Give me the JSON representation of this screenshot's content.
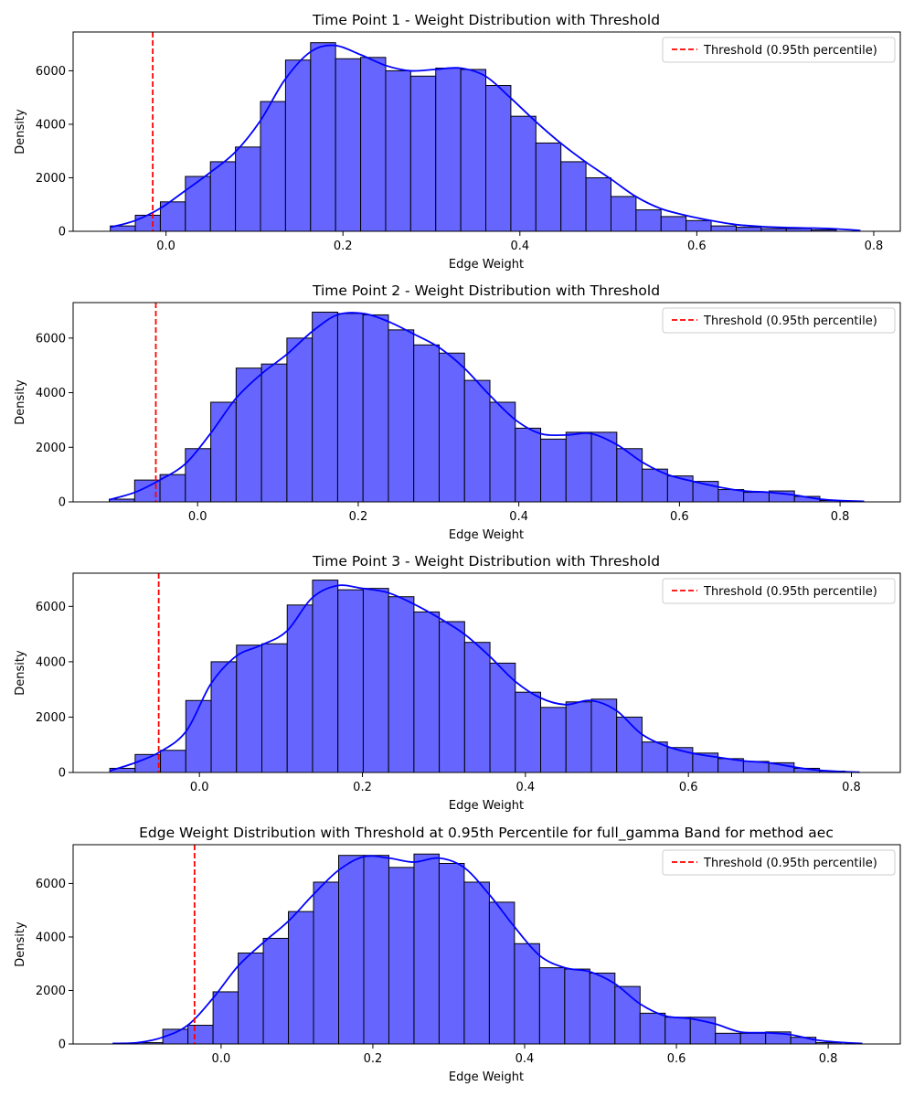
{
  "chart_data": [
    {
      "type": "bar",
      "title": "Time Point 1 - Weight Distribution with Threshold",
      "xlabel": "Edge Weight",
      "ylabel": "Density",
      "xlim": [
        -0.105,
        0.83
      ],
      "ylim": [
        0,
        7450
      ],
      "xticks": [
        0.0,
        0.2,
        0.4,
        0.6,
        0.8
      ],
      "xtick_labels": [
        "0.0",
        "0.2",
        "0.4",
        "0.6",
        "0.8"
      ],
      "yticks": [
        0,
        2000,
        4000,
        6000
      ],
      "ytick_labels": [
        "0",
        "2000",
        "4000",
        "6000"
      ],
      "bin_start": -0.063,
      "bin_width": 0.0283,
      "values": [
        200,
        600,
        1100,
        2050,
        2600,
        3150,
        4850,
        6400,
        7050,
        6450,
        6500,
        6000,
        5800,
        6100,
        6050,
        5450,
        4300,
        3300,
        2600,
        2000,
        1300,
        800,
        550,
        400,
        200,
        150,
        100,
        100,
        50
      ],
      "kde": [
        {
          "x": -0.063,
          "y": 150
        },
        {
          "x": -0.035,
          "y": 400
        },
        {
          "x": -0.007,
          "y": 850
        },
        {
          "x": 0.021,
          "y": 1500
        },
        {
          "x": 0.05,
          "y": 2200
        },
        {
          "x": 0.078,
          "y": 2950
        },
        {
          "x": 0.106,
          "y": 4100
        },
        {
          "x": 0.134,
          "y": 5650
        },
        {
          "x": 0.163,
          "y": 6700
        },
        {
          "x": 0.19,
          "y": 6950
        },
        {
          "x": 0.22,
          "y": 6600
        },
        {
          "x": 0.248,
          "y": 6200
        },
        {
          "x": 0.276,
          "y": 6000
        },
        {
          "x": 0.304,
          "y": 6050
        },
        {
          "x": 0.333,
          "y": 6100
        },
        {
          "x": 0.361,
          "y": 5800
        },
        {
          "x": 0.389,
          "y": 5000
        },
        {
          "x": 0.418,
          "y": 4100
        },
        {
          "x": 0.446,
          "y": 3300
        },
        {
          "x": 0.474,
          "y": 2600
        },
        {
          "x": 0.503,
          "y": 1950
        },
        {
          "x": 0.531,
          "y": 1300
        },
        {
          "x": 0.559,
          "y": 850
        },
        {
          "x": 0.587,
          "y": 600
        },
        {
          "x": 0.616,
          "y": 400
        },
        {
          "x": 0.644,
          "y": 250
        },
        {
          "x": 0.672,
          "y": 180
        },
        {
          "x": 0.7,
          "y": 140
        },
        {
          "x": 0.729,
          "y": 120
        },
        {
          "x": 0.757,
          "y": 90
        },
        {
          "x": 0.785,
          "y": 30
        }
      ],
      "threshold": -0.015,
      "legend": {
        "label": "Threshold (0.95th percentile)",
        "position": "top-right"
      },
      "colors": {
        "bar_fill": "#6666ff",
        "bar_edge": "#000000",
        "kde": "#0000ff",
        "threshold": "#ff0000"
      },
      "grid": false
    },
    {
      "type": "bar",
      "title": "Time Point 2 - Weight Distribution with Threshold",
      "xlabel": "Edge Weight",
      "ylabel": "Density",
      "xlim": [
        -0.155,
        0.875
      ],
      "ylim": [
        0,
        7300
      ],
      "xticks": [
        0.0,
        0.2,
        0.4,
        0.6,
        0.8
      ],
      "xtick_labels": [
        "0.0",
        "0.2",
        "0.4",
        "0.6",
        "0.8"
      ],
      "yticks": [
        0,
        2000,
        4000,
        6000
      ],
      "ytick_labels": [
        "0",
        "2000",
        "4000",
        "6000"
      ],
      "bin_start": -0.11,
      "bin_width": 0.0316,
      "values": [
        100,
        800,
        1000,
        1950,
        3650,
        4900,
        5050,
        6000,
        6950,
        6900,
        6850,
        6300,
        5750,
        5450,
        4450,
        3650,
        2700,
        2300,
        2550,
        2550,
        1950,
        1200,
        950,
        750,
        450,
        350,
        400,
        200,
        50
      ],
      "kde": [
        {
          "x": -0.11,
          "y": 80
        },
        {
          "x": -0.078,
          "y": 350
        },
        {
          "x": -0.047,
          "y": 800
        },
        {
          "x": -0.015,
          "y": 1400
        },
        {
          "x": 0.016,
          "y": 2500
        },
        {
          "x": 0.048,
          "y": 3800
        },
        {
          "x": 0.08,
          "y": 4700
        },
        {
          "x": 0.111,
          "y": 5400
        },
        {
          "x": 0.143,
          "y": 6250
        },
        {
          "x": 0.174,
          "y": 6850
        },
        {
          "x": 0.206,
          "y": 6900
        },
        {
          "x": 0.238,
          "y": 6600
        },
        {
          "x": 0.269,
          "y": 6150
        },
        {
          "x": 0.301,
          "y": 5650
        },
        {
          "x": 0.332,
          "y": 4900
        },
        {
          "x": 0.364,
          "y": 3900
        },
        {
          "x": 0.396,
          "y": 3000
        },
        {
          "x": 0.427,
          "y": 2500
        },
        {
          "x": 0.459,
          "y": 2450
        },
        {
          "x": 0.49,
          "y": 2500
        },
        {
          "x": 0.522,
          "y": 2100
        },
        {
          "x": 0.554,
          "y": 1450
        },
        {
          "x": 0.585,
          "y": 1000
        },
        {
          "x": 0.617,
          "y": 750
        },
        {
          "x": 0.648,
          "y": 550
        },
        {
          "x": 0.68,
          "y": 400
        },
        {
          "x": 0.712,
          "y": 350
        },
        {
          "x": 0.743,
          "y": 250
        },
        {
          "x": 0.775,
          "y": 100
        },
        {
          "x": 0.806,
          "y": 40
        },
        {
          "x": 0.83,
          "y": 20
        }
      ],
      "threshold": -0.052,
      "legend": {
        "label": "Threshold (0.95th percentile)",
        "position": "top-right"
      },
      "colors": {
        "bar_fill": "#6666ff",
        "bar_edge": "#000000",
        "kde": "#0000ff",
        "threshold": "#ff0000"
      },
      "grid": false
    },
    {
      "type": "bar",
      "title": "Time Point 3 - Weight Distribution with Threshold",
      "xlabel": "Edge Weight",
      "ylabel": "Density",
      "xlim": [
        -0.155,
        0.86
      ],
      "ylim": [
        0,
        7200
      ],
      "xticks": [
        0.0,
        0.2,
        0.4,
        0.6,
        0.8
      ],
      "xtick_labels": [
        "0.0",
        "0.2",
        "0.4",
        "0.6",
        "0.8"
      ],
      "yticks": [
        0,
        2000,
        4000,
        6000
      ],
      "ytick_labels": [
        "0",
        "2000",
        "4000",
        "6000"
      ],
      "bin_start": -0.11,
      "bin_width": 0.0311,
      "values": [
        150,
        650,
        800,
        2600,
        4000,
        4600,
        4650,
        6050,
        6950,
        6600,
        6650,
        6350,
        5800,
        5450,
        4700,
        3950,
        2900,
        2350,
        2550,
        2650,
        2000,
        1100,
        900,
        700,
        500,
        400,
        350,
        150,
        50
      ],
      "kde": [
        {
          "x": -0.11,
          "y": 60
        },
        {
          "x": -0.079,
          "y": 350
        },
        {
          "x": -0.048,
          "y": 750
        },
        {
          "x": -0.016,
          "y": 1500
        },
        {
          "x": 0.014,
          "y": 3200
        },
        {
          "x": 0.045,
          "y": 4200
        },
        {
          "x": 0.076,
          "y": 4600
        },
        {
          "x": 0.107,
          "y": 5100
        },
        {
          "x": 0.138,
          "y": 6300
        },
        {
          "x": 0.169,
          "y": 6750
        },
        {
          "x": 0.2,
          "y": 6650
        },
        {
          "x": 0.231,
          "y": 6500
        },
        {
          "x": 0.262,
          "y": 6100
        },
        {
          "x": 0.293,
          "y": 5600
        },
        {
          "x": 0.325,
          "y": 5000
        },
        {
          "x": 0.356,
          "y": 4200
        },
        {
          "x": 0.387,
          "y": 3300
        },
        {
          "x": 0.418,
          "y": 2700
        },
        {
          "x": 0.449,
          "y": 2450
        },
        {
          "x": 0.48,
          "y": 2600
        },
        {
          "x": 0.511,
          "y": 2250
        },
        {
          "x": 0.542,
          "y": 1400
        },
        {
          "x": 0.573,
          "y": 950
        },
        {
          "x": 0.604,
          "y": 700
        },
        {
          "x": 0.636,
          "y": 550
        },
        {
          "x": 0.667,
          "y": 420
        },
        {
          "x": 0.698,
          "y": 350
        },
        {
          "x": 0.729,
          "y": 200
        },
        {
          "x": 0.76,
          "y": 80
        },
        {
          "x": 0.791,
          "y": 30
        },
        {
          "x": 0.81,
          "y": 10
        }
      ],
      "threshold": -0.05,
      "legend": {
        "label": "Threshold (0.95th percentile)",
        "position": "top-right"
      },
      "colors": {
        "bar_fill": "#6666ff",
        "bar_edge": "#000000",
        "kde": "#0000ff",
        "threshold": "#ff0000"
      },
      "grid": false
    },
    {
      "type": "bar",
      "title": "Edge Weight Distribution with Threshold at 0.95th Percentile for full_gamma Band for method aec",
      "xlabel": "Edge Weight",
      "ylabel": "Density",
      "xlim": [
        -0.195,
        0.895
      ],
      "ylim": [
        0,
        7450
      ],
      "xticks": [
        0.0,
        0.2,
        0.4,
        0.6,
        0.8
      ],
      "xtick_labels": [
        "0.0",
        "0.2",
        "0.4",
        "0.6",
        "0.8"
      ],
      "yticks": [
        0,
        2000,
        4000,
        6000
      ],
      "ytick_labels": [
        "0",
        "2000",
        "4000",
        "6000"
      ],
      "bin_start": -0.143,
      "bin_width": 0.0331,
      "values": [
        0,
        50,
        550,
        700,
        1950,
        3400,
        3950,
        4950,
        6050,
        7050,
        7050,
        6600,
        7100,
        6750,
        6050,
        5300,
        3750,
        2850,
        2800,
        2650,
        2150,
        1150,
        1000,
        1000,
        400,
        400,
        450,
        250,
        50
      ],
      "kde": [
        {
          "x": -0.143,
          "y": 20
        },
        {
          "x": -0.11,
          "y": 50
        },
        {
          "x": -0.077,
          "y": 250
        },
        {
          "x": -0.044,
          "y": 700
        },
        {
          "x": -0.011,
          "y": 1700
        },
        {
          "x": 0.022,
          "y": 2900
        },
        {
          "x": 0.056,
          "y": 3800
        },
        {
          "x": 0.089,
          "y": 4600
        },
        {
          "x": 0.122,
          "y": 5600
        },
        {
          "x": 0.155,
          "y": 6500
        },
        {
          "x": 0.188,
          "y": 7000
        },
        {
          "x": 0.221,
          "y": 6950
        },
        {
          "x": 0.254,
          "y": 6800
        },
        {
          "x": 0.287,
          "y": 6950
        },
        {
          "x": 0.32,
          "y": 6600
        },
        {
          "x": 0.353,
          "y": 5600
        },
        {
          "x": 0.386,
          "y": 4400
        },
        {
          "x": 0.42,
          "y": 3300
        },
        {
          "x": 0.453,
          "y": 2850
        },
        {
          "x": 0.486,
          "y": 2700
        },
        {
          "x": 0.519,
          "y": 2250
        },
        {
          "x": 0.552,
          "y": 1500
        },
        {
          "x": 0.585,
          "y": 1050
        },
        {
          "x": 0.618,
          "y": 950
        },
        {
          "x": 0.651,
          "y": 750
        },
        {
          "x": 0.684,
          "y": 450
        },
        {
          "x": 0.717,
          "y": 420
        },
        {
          "x": 0.75,
          "y": 350
        },
        {
          "x": 0.784,
          "y": 150
        },
        {
          "x": 0.817,
          "y": 60
        },
        {
          "x": 0.845,
          "y": 20
        }
      ],
      "threshold": -0.035,
      "legend": {
        "label": "Threshold (0.95th percentile)",
        "position": "top-right"
      },
      "colors": {
        "bar_fill": "#6666ff",
        "bar_edge": "#000000",
        "kde": "#0000ff",
        "threshold": "#ff0000"
      },
      "grid": false
    }
  ]
}
